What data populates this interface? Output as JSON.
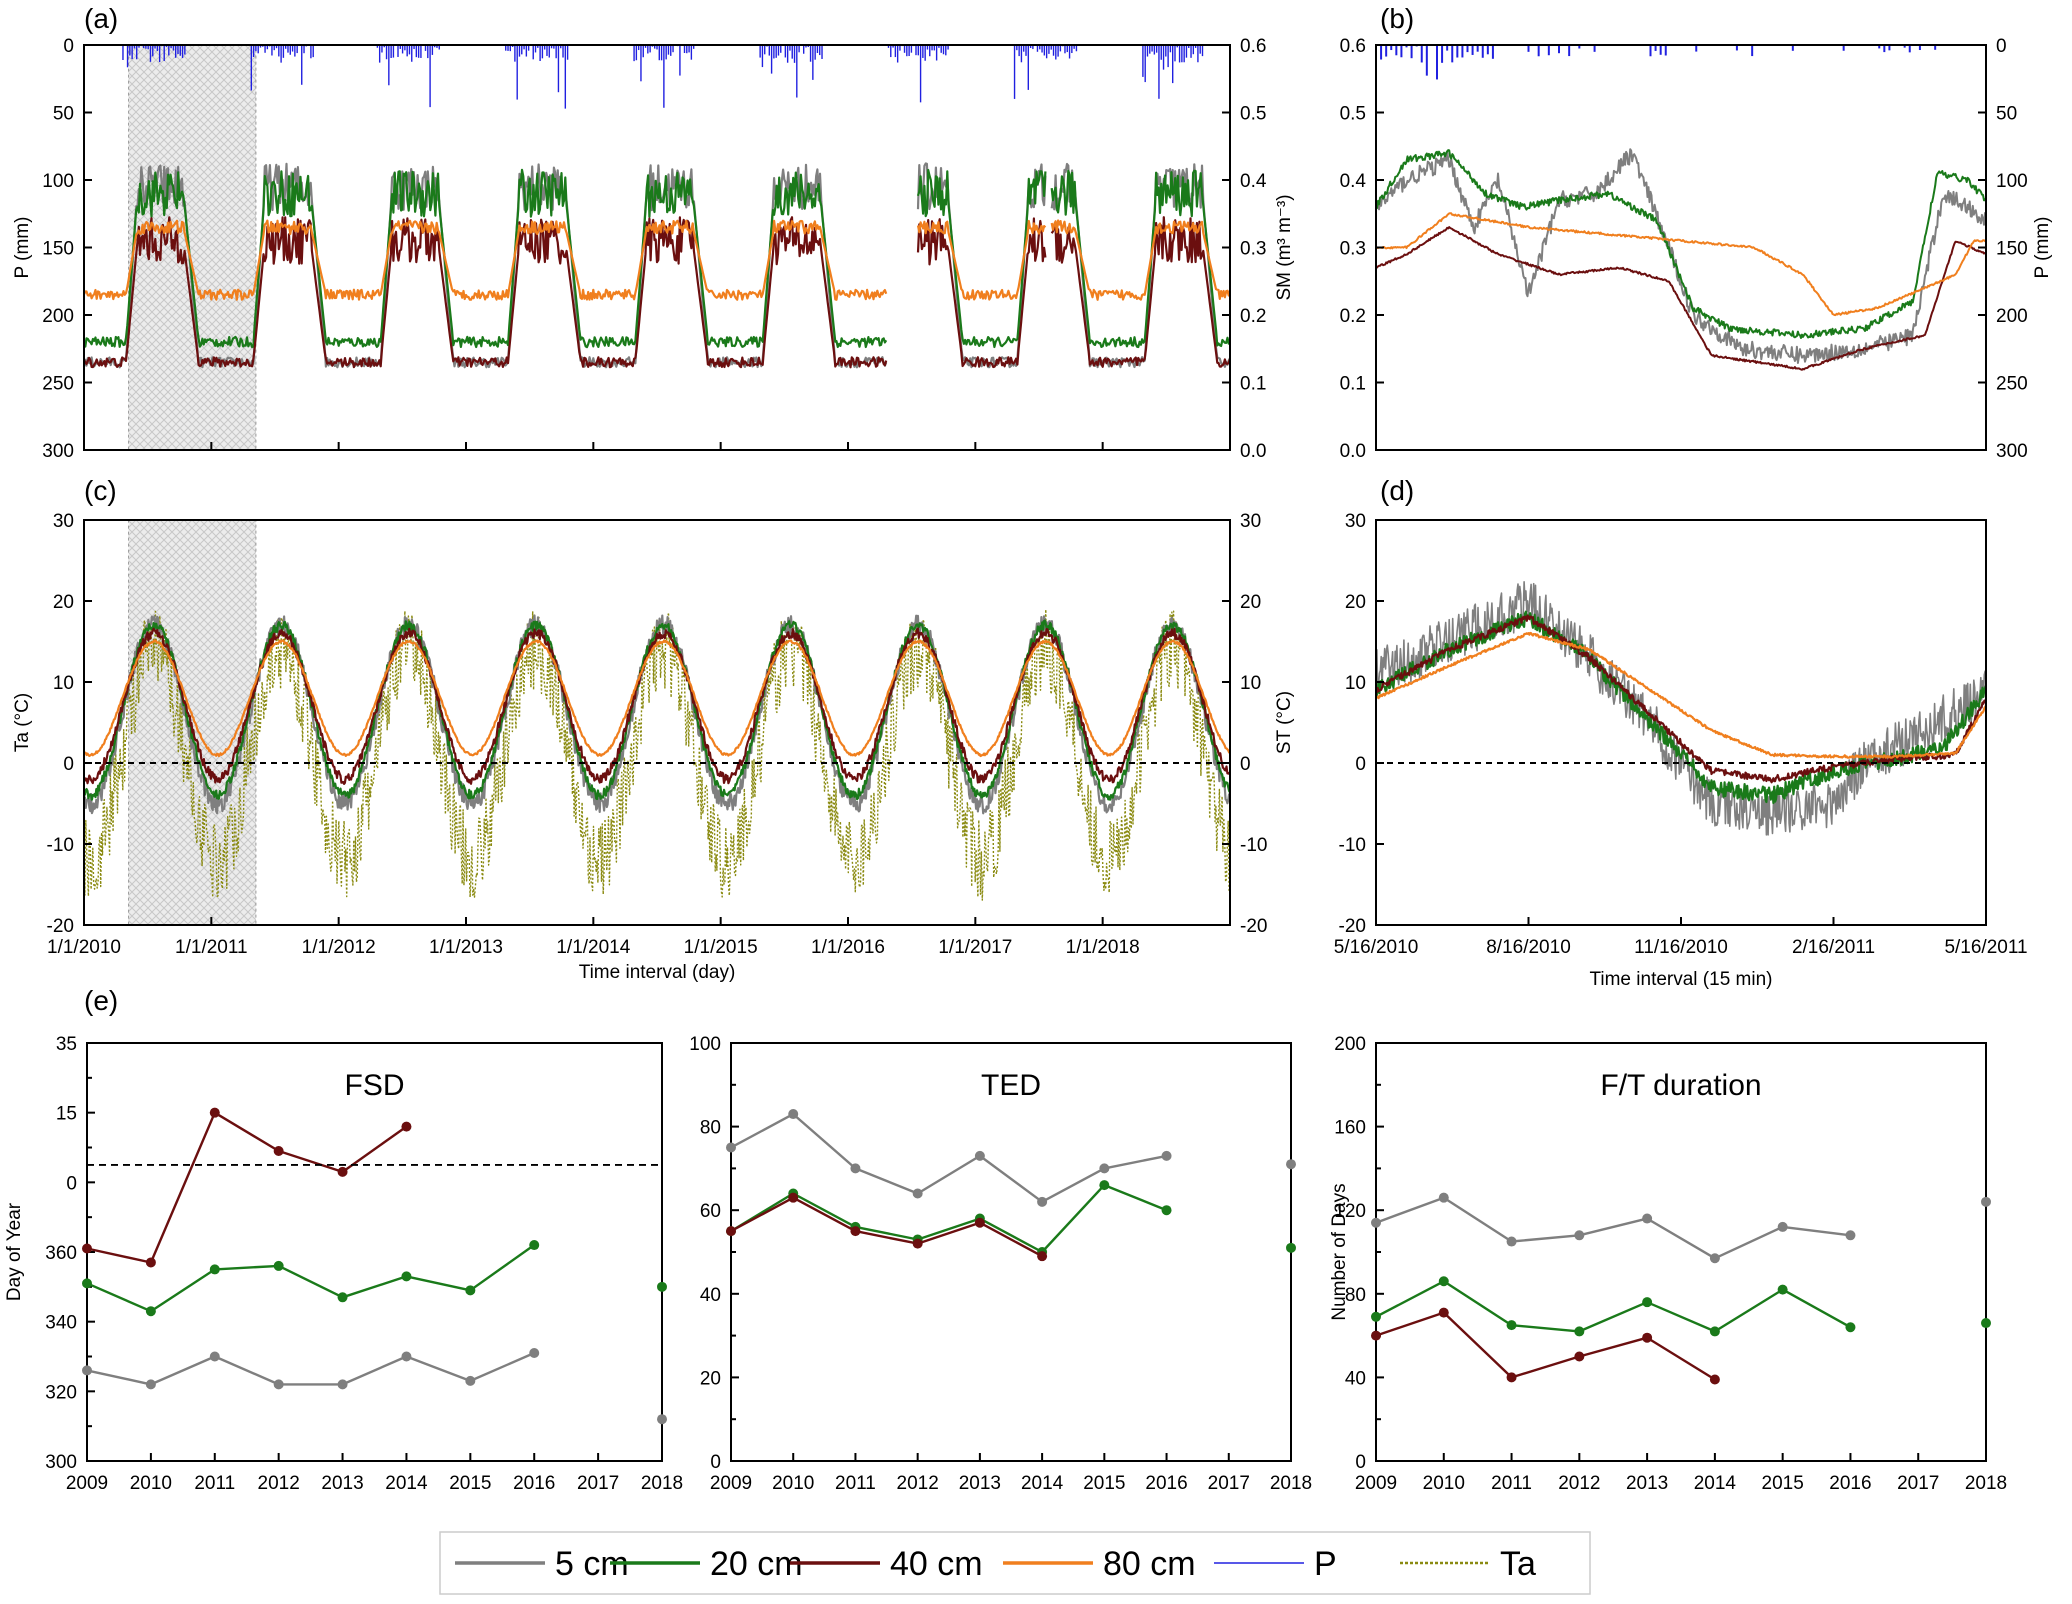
{
  "colors": {
    "d5": "#7f7f7f",
    "d20": "#1a7a1a",
    "d40": "#6b0f0f",
    "d80": "#f07f1e",
    "P": "#2020e0",
    "Ta": "#8a8a10"
  },
  "legend": [
    {
      "key": "d5",
      "label": "5 cm",
      "style": "solid"
    },
    {
      "key": "d20",
      "label": "20 cm",
      "style": "solid"
    },
    {
      "key": "d40",
      "label": "40 cm",
      "style": "solid"
    },
    {
      "key": "d80",
      "label": "80 cm",
      "style": "solid"
    },
    {
      "key": "P",
      "label": "P",
      "style": "thin"
    },
    {
      "key": "Ta",
      "label": "Ta",
      "style": "dotted"
    }
  ],
  "chart_data": [
    {
      "id": "a",
      "panel_label": "(a)",
      "type": "line",
      "title": "",
      "ylabel_left": "P (mm)",
      "ylabel_right": "SM (m³ m⁻³)",
      "yleft_ticks": [
        "0",
        "50",
        "100",
        "150",
        "200",
        "250",
        "300"
      ],
      "yright_ticks": [
        "0.6",
        "0.5",
        "0.4",
        "0.3",
        "0.2",
        "0.1",
        "0.0"
      ],
      "ylim_sm": [
        0,
        0.6
      ],
      "ylim_p": [
        0,
        300
      ],
      "p_axis": "inverted",
      "x_years": [
        2010,
        2019
      ],
      "shaded_years": [
        2010.35,
        2011.35
      ],
      "series": [
        {
          "key": "d5",
          "name": "5 cm",
          "winter": 0.13,
          "summer": 0.39
        },
        {
          "key": "d20",
          "name": "20 cm",
          "winter": 0.16,
          "summer": 0.38
        },
        {
          "key": "d40",
          "name": "40 cm",
          "winter": 0.13,
          "summer": 0.31
        },
        {
          "key": "d80",
          "name": "80 cm",
          "winter": 0.23,
          "summer": 0.33
        }
      ],
      "gaps": [
        [
          2016.3,
          2016.55
        ],
        [
          2017.55,
          2017.6
        ]
      ]
    },
    {
      "id": "b",
      "panel_label": "(b)",
      "type": "line",
      "ylabel_right": "P (mm)",
      "yleft_ticks": [
        "0.0",
        "0.1",
        "0.2",
        "0.3",
        "0.4",
        "0.5",
        "0.6"
      ],
      "yright_ticks": [
        "0",
        "50",
        "100",
        "150",
        "200",
        "250",
        "300"
      ],
      "ylim_sm": [
        0,
        0.6
      ],
      "series": [
        {
          "key": "d5",
          "name": "5 cm",
          "points": [
            [
              0,
              0.36
            ],
            [
              0.05,
              0.4
            ],
            [
              0.12,
              0.43
            ],
            [
              0.16,
              0.33
            ],
            [
              0.2,
              0.4
            ],
            [
              0.25,
              0.23
            ],
            [
              0.3,
              0.37
            ],
            [
              0.36,
              0.38
            ],
            [
              0.42,
              0.44
            ],
            [
              0.48,
              0.3
            ],
            [
              0.52,
              0.2
            ],
            [
              0.6,
              0.15
            ],
            [
              0.7,
              0.14
            ],
            [
              0.8,
              0.15
            ],
            [
              0.88,
              0.17
            ],
            [
              0.93,
              0.38
            ],
            [
              0.97,
              0.36
            ],
            [
              1,
              0.34
            ]
          ]
        },
        {
          "key": "d20",
          "name": "20 cm",
          "points": [
            [
              0,
              0.36
            ],
            [
              0.05,
              0.43
            ],
            [
              0.12,
              0.44
            ],
            [
              0.18,
              0.38
            ],
            [
              0.24,
              0.36
            ],
            [
              0.3,
              0.37
            ],
            [
              0.38,
              0.38
            ],
            [
              0.46,
              0.34
            ],
            [
              0.52,
              0.21
            ],
            [
              0.58,
              0.18
            ],
            [
              0.7,
              0.17
            ],
            [
              0.8,
              0.18
            ],
            [
              0.88,
              0.22
            ],
            [
              0.92,
              0.41
            ],
            [
              0.97,
              0.4
            ],
            [
              1,
              0.37
            ]
          ]
        },
        {
          "key": "d40",
          "name": "40 cm",
          "points": [
            [
              0,
              0.27
            ],
            [
              0.05,
              0.29
            ],
            [
              0.12,
              0.33
            ],
            [
              0.2,
              0.29
            ],
            [
              0.3,
              0.26
            ],
            [
              0.4,
              0.27
            ],
            [
              0.48,
              0.25
            ],
            [
              0.55,
              0.14
            ],
            [
              0.7,
              0.12
            ],
            [
              0.8,
              0.15
            ],
            [
              0.9,
              0.17
            ],
            [
              0.95,
              0.31
            ],
            [
              1,
              0.29
            ]
          ]
        },
        {
          "key": "d80",
          "name": "80 cm",
          "points": [
            [
              0,
              0.3
            ],
            [
              0.05,
              0.3
            ],
            [
              0.12,
              0.35
            ],
            [
              0.25,
              0.33
            ],
            [
              0.5,
              0.31
            ],
            [
              0.62,
              0.3
            ],
            [
              0.7,
              0.26
            ],
            [
              0.75,
              0.2
            ],
            [
              0.82,
              0.21
            ],
            [
              0.9,
              0.24
            ],
            [
              0.95,
              0.26
            ],
            [
              0.98,
              0.31
            ],
            [
              1,
              0.31
            ]
          ]
        }
      ]
    },
    {
      "id": "c",
      "panel_label": "(c)",
      "type": "line",
      "xlabel": "Time interval (day)",
      "ylabel_left": "Ta (°C)",
      "ylabel_right": "ST (°C)",
      "yleft_ticks": [
        "30",
        "20",
        "10",
        "0",
        "-10",
        "-20"
      ],
      "yright_ticks": [
        "30",
        "20",
        "10",
        "0",
        "-10",
        "-20"
      ],
      "ylim": [
        -20,
        30
      ],
      "x_ticks": [
        "1/1/2010",
        "1/1/2011",
        "1/1/2012",
        "1/1/2013",
        "1/1/2014",
        "1/1/2015",
        "1/1/2016",
        "1/1/2017",
        "1/1/2018"
      ],
      "x_years": [
        2010,
        2019
      ],
      "shaded_years": [
        2010.35,
        2011.35
      ],
      "zero_line": 0,
      "series": [
        {
          "key": "Ta",
          "name": "Ta",
          "winter": -12,
          "summer": 14
        },
        {
          "key": "d5",
          "name": "5 cm",
          "winter": -5,
          "summer": 17
        },
        {
          "key": "d20",
          "name": "20 cm",
          "winter": -4,
          "summer": 17
        },
        {
          "key": "d40",
          "name": "40 cm",
          "winter": -2,
          "summer": 16
        },
        {
          "key": "d80",
          "name": "80 cm",
          "winter": 1,
          "summer": 15
        }
      ]
    },
    {
      "id": "d",
      "panel_label": "(d)",
      "type": "line",
      "xlabel": "Time interval (15 min)",
      "yleft_ticks": [
        "30",
        "20",
        "10",
        "0",
        "-10",
        "-20"
      ],
      "ylim": [
        -20,
        30
      ],
      "x_ticks": [
        "5/16/2010",
        "8/16/2010",
        "11/16/2010",
        "2/16/2011",
        "5/16/2011"
      ],
      "zero_line": 0,
      "series": [
        {
          "key": "d5",
          "name": "5 cm",
          "points": [
            [
              0,
              11
            ],
            [
              0.12,
              15
            ],
            [
              0.25,
              20
            ],
            [
              0.35,
              13
            ],
            [
              0.45,
              5
            ],
            [
              0.55,
              -5
            ],
            [
              0.65,
              -6
            ],
            [
              0.75,
              -5
            ],
            [
              0.8,
              0
            ],
            [
              0.9,
              4
            ],
            [
              1,
              9
            ]
          ]
        },
        {
          "key": "d20",
          "name": "20 cm",
          "points": [
            [
              0,
              9
            ],
            [
              0.12,
              14
            ],
            [
              0.25,
              18
            ],
            [
              0.35,
              13
            ],
            [
              0.45,
              5
            ],
            [
              0.55,
              -3
            ],
            [
              0.65,
              -4
            ],
            [
              0.75,
              -1
            ],
            [
              0.85,
              0.5
            ],
            [
              0.93,
              2
            ],
            [
              1,
              9
            ]
          ]
        },
        {
          "key": "d40",
          "name": "40 cm",
          "points": [
            [
              0,
              9
            ],
            [
              0.12,
              14
            ],
            [
              0.25,
              18
            ],
            [
              0.35,
              13
            ],
            [
              0.45,
              6
            ],
            [
              0.55,
              -1
            ],
            [
              0.65,
              -2
            ],
            [
              0.75,
              -0.5
            ],
            [
              0.85,
              0.5
            ],
            [
              0.95,
              1
            ],
            [
              1,
              8
            ]
          ]
        },
        {
          "key": "d80",
          "name": "80 cm",
          "points": [
            [
              0,
              8
            ],
            [
              0.12,
              12
            ],
            [
              0.25,
              16
            ],
            [
              0.35,
              14
            ],
            [
              0.45,
              9
            ],
            [
              0.55,
              4
            ],
            [
              0.65,
              1
            ],
            [
              0.75,
              0.8
            ],
            [
              0.85,
              0.8
            ],
            [
              0.95,
              1.2
            ],
            [
              1,
              7
            ]
          ]
        }
      ]
    },
    {
      "id": "e1",
      "panel_label": "(e)",
      "type": "line",
      "title": "FSD",
      "ylabel": "Day of Year",
      "y_ticks": [
        "35",
        "15",
        "0",
        "360",
        "340",
        "320",
        "300"
      ],
      "categories": [
        "2009",
        "2010",
        "2011",
        "2012",
        "2013",
        "2014",
        "2015",
        "2016",
        "2017",
        "2018"
      ],
      "dashed_line_label": "0",
      "series": [
        {
          "key": "d5",
          "name": "5 cm",
          "values": [
            326,
            322,
            330,
            322,
            322,
            330,
            323,
            331,
            null,
            312
          ]
        },
        {
          "key": "d20",
          "name": "20 cm",
          "values": [
            351,
            343,
            355,
            356,
            347,
            353,
            349,
            362,
            null,
            350
          ]
        },
        {
          "key": "d40",
          "name": "40 cm",
          "values": [
            361,
            357,
            15,
            4,
            -2,
            11,
            null,
            null,
            null,
            null
          ]
        }
      ]
    },
    {
      "id": "e2",
      "type": "line",
      "title": "TED",
      "y_ticks": [
        "100",
        "80",
        "60",
        "40",
        "20",
        "0"
      ],
      "ylim": [
        0,
        100
      ],
      "categories": [
        "2009",
        "2010",
        "2011",
        "2012",
        "2013",
        "2014",
        "2015",
        "2016",
        "2017",
        "2018"
      ],
      "series": [
        {
          "key": "d5",
          "name": "5 cm",
          "values": [
            75,
            83,
            70,
            64,
            73,
            62,
            70,
            73,
            null,
            71
          ]
        },
        {
          "key": "d20",
          "name": "20 cm",
          "values": [
            55,
            64,
            56,
            53,
            58,
            50,
            66,
            60,
            null,
            51
          ]
        },
        {
          "key": "d40",
          "name": "40 cm",
          "values": [
            55,
            63,
            55,
            52,
            57,
            49,
            null,
            null,
            null,
            null
          ]
        }
      ]
    },
    {
      "id": "e3",
      "type": "line",
      "title": "F/T duration",
      "ylabel": "Number of Days",
      "y_ticks": [
        "200",
        "160",
        "120",
        "80",
        "40",
        "0"
      ],
      "ylim": [
        0,
        200
      ],
      "categories": [
        "2009",
        "2010",
        "2011",
        "2012",
        "2013",
        "2014",
        "2015",
        "2016",
        "2017",
        "2018"
      ],
      "series": [
        {
          "key": "d5",
          "name": "5 cm",
          "values": [
            114,
            126,
            105,
            108,
            116,
            97,
            112,
            108,
            null,
            124
          ]
        },
        {
          "key": "d20",
          "name": "20 cm",
          "values": [
            69,
            86,
            65,
            62,
            76,
            62,
            82,
            64,
            null,
            66
          ]
        },
        {
          "key": "d40",
          "name": "40 cm",
          "values": [
            60,
            71,
            40,
            50,
            59,
            39,
            null,
            null,
            null,
            null
          ]
        }
      ]
    }
  ]
}
